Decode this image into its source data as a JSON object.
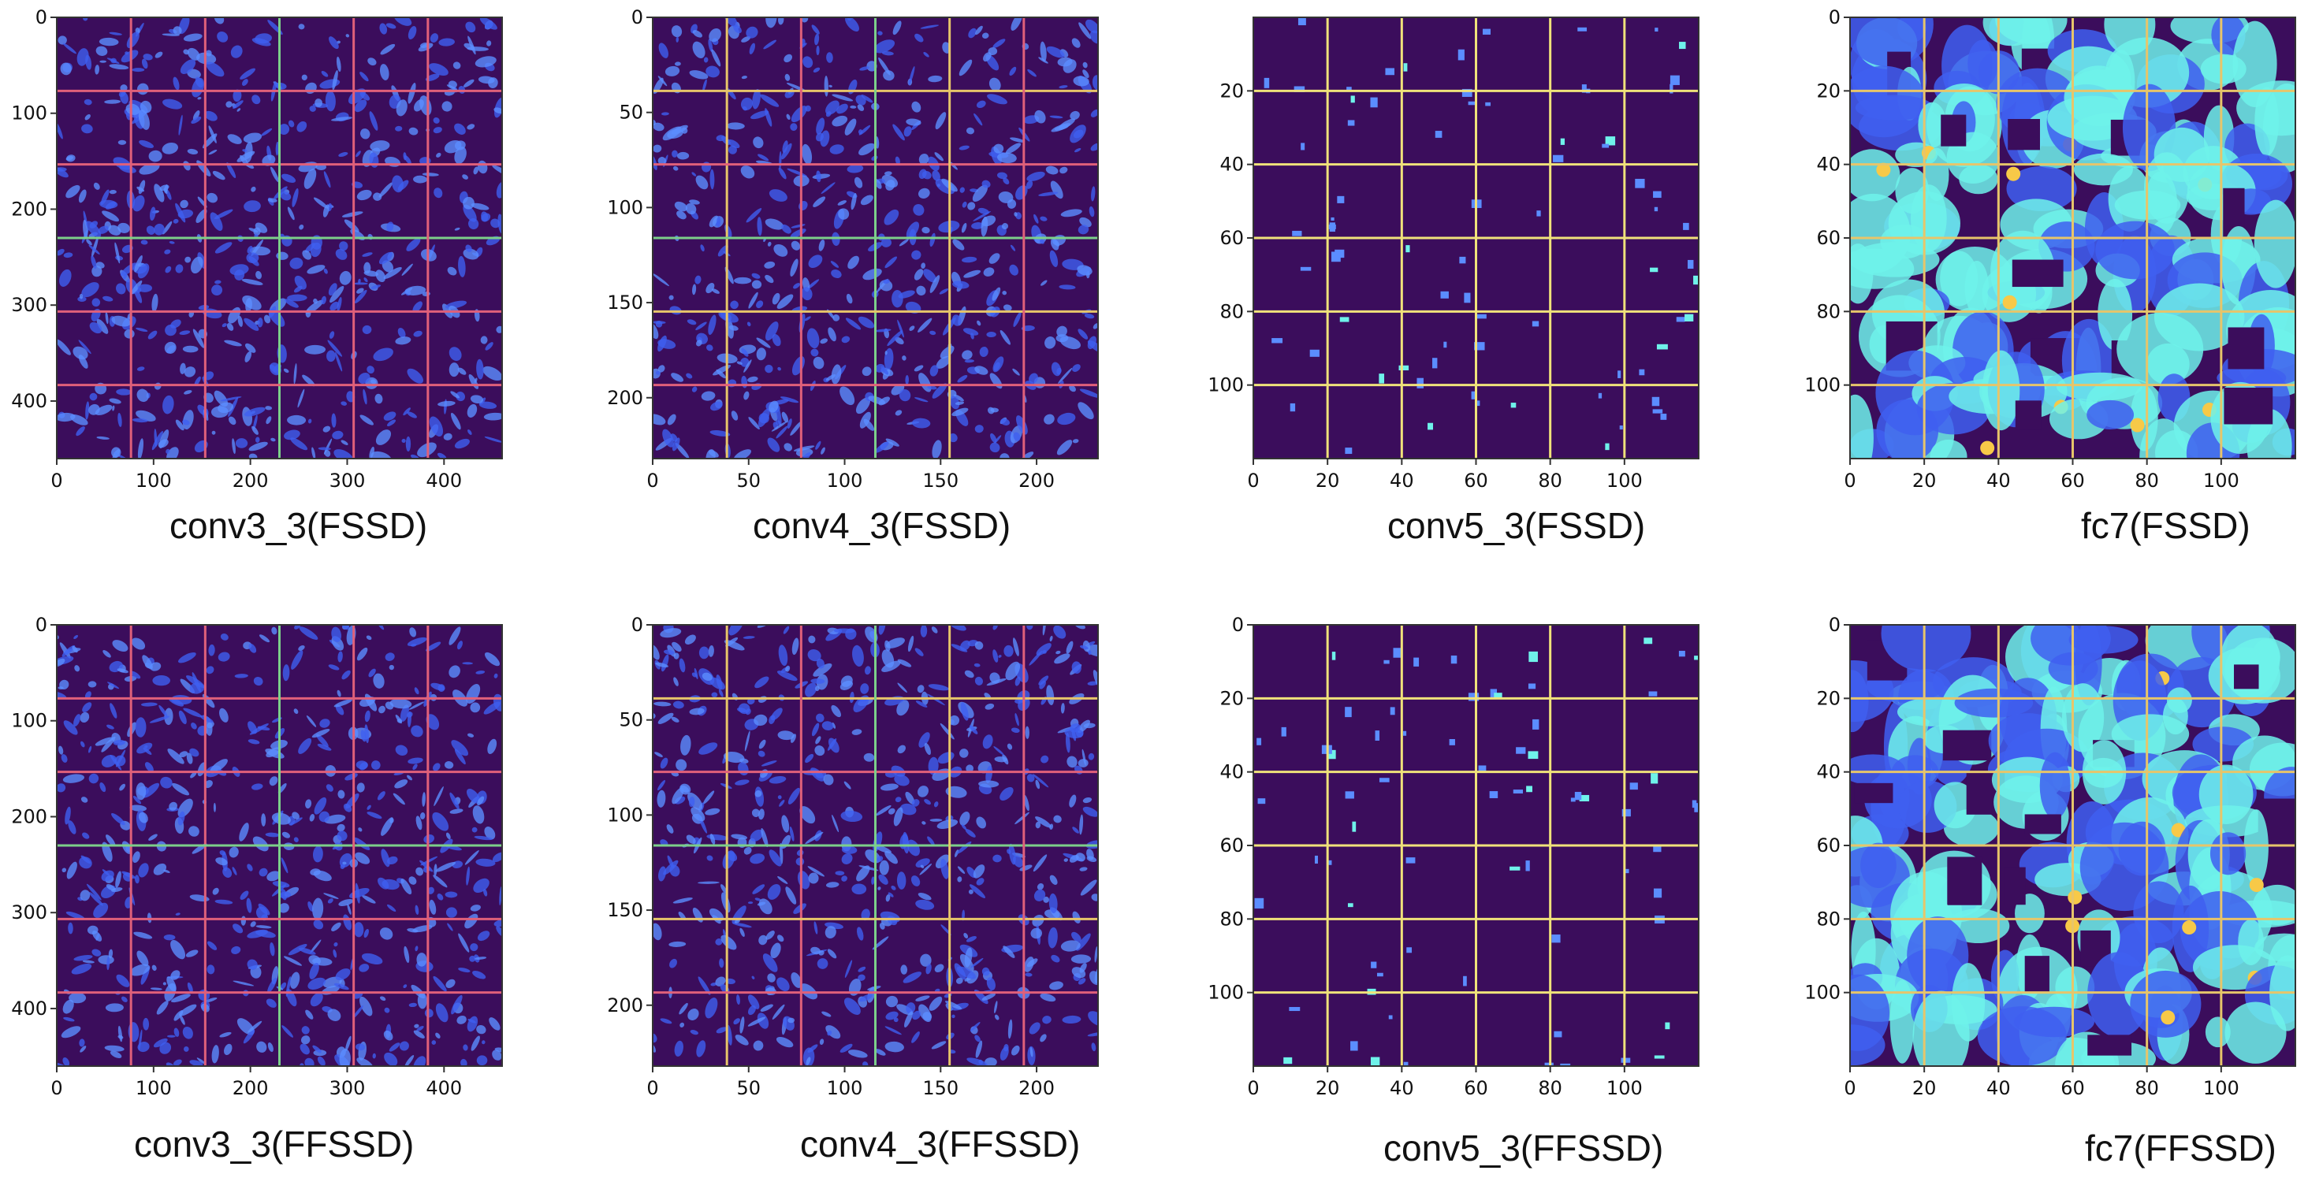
{
  "panels": [
    {
      "caption": "conv3_3(FSSD)",
      "xticks": [
        "0",
        "100",
        "200",
        "300",
        "400"
      ],
      "yticks": [
        "0",
        "100",
        "200",
        "300",
        "400"
      ],
      "extent": [
        0,
        460
      ],
      "tiles": 6,
      "level": 1,
      "gridColors": [
        "#e0607a",
        "#e0607a",
        "#7ccf8a",
        "#e0607a",
        "#e0607a"
      ]
    },
    {
      "caption": "conv4_3(FSSD)",
      "xticks": [
        "0",
        "50",
        "100",
        "150",
        "200"
      ],
      "yticks": [
        "0",
        "50",
        "100",
        "150",
        "200"
      ],
      "extent": [
        0,
        232
      ],
      "tiles": 6,
      "level": 1,
      "gridColors": [
        "#e7c56a",
        "#e0607a",
        "#7ccf8a",
        "#e7c56a",
        "#e0607a"
      ]
    },
    {
      "caption": "conv5_3(FSSD)",
      "xticks": [
        "0",
        "20",
        "40",
        "60",
        "80",
        "100"
      ],
      "yticks": [
        "20",
        "40",
        "60",
        "80",
        "100"
      ],
      "extent": [
        0,
        120
      ],
      "tiles": 6,
      "level": 0,
      "gridColors": [
        "#f0e27a",
        "#f0e27a",
        "#f0e27a",
        "#f0e27a",
        "#f0e27a"
      ]
    },
    {
      "caption": "fc7(FSSD)",
      "xticks": [
        "0",
        "20",
        "40",
        "60",
        "80",
        "100"
      ],
      "yticks": [
        "0",
        "20",
        "40",
        "60",
        "80",
        "100"
      ],
      "extent": [
        0,
        120
      ],
      "tiles": 6,
      "level": 2,
      "gridColors": [
        "#e7c56a",
        "#e7c56a",
        "#e7c56a",
        "#e7c56a",
        "#e7c56a"
      ]
    },
    {
      "caption": "conv3_3(FFSSD)",
      "xticks": [
        "0",
        "100",
        "200",
        "300",
        "400"
      ],
      "yticks": [
        "0",
        "100",
        "200",
        "300",
        "400"
      ],
      "extent": [
        0,
        460
      ],
      "tiles": 6,
      "level": 1,
      "gridColors": [
        "#e0607a",
        "#e0607a",
        "#7ccf8a",
        "#e0607a",
        "#e0607a"
      ]
    },
    {
      "caption": "conv4_3(FFSSD)",
      "xticks": [
        "0",
        "50",
        "100",
        "150",
        "200"
      ],
      "yticks": [
        "0",
        "50",
        "100",
        "150",
        "200"
      ],
      "extent": [
        0,
        232
      ],
      "tiles": 6,
      "level": 1,
      "gridColors": [
        "#e7c56a",
        "#e0607a",
        "#7ccf8a",
        "#e7c56a",
        "#e0607a"
      ]
    },
    {
      "caption": "conv5_3(FFSSD)",
      "xticks": [
        "0",
        "20",
        "40",
        "60",
        "80",
        "100"
      ],
      "yticks": [
        "0",
        "20",
        "40",
        "60",
        "80",
        "100"
      ],
      "extent": [
        0,
        120
      ],
      "tiles": 6,
      "level": 0,
      "gridColors": [
        "#f0e27a",
        "#f0e27a",
        "#f0e27a",
        "#f0e27a",
        "#f0e27a"
      ]
    },
    {
      "caption": "fc7(FFSSD)",
      "xticks": [
        "0",
        "20",
        "40",
        "60",
        "80",
        "100"
      ],
      "yticks": [
        "0",
        "20",
        "40",
        "60",
        "80",
        "100"
      ],
      "extent": [
        0,
        120
      ],
      "tiles": 6,
      "level": 2,
      "gridColors": [
        "#e7c56a",
        "#e7c56a",
        "#e7c56a",
        "#e7c56a",
        "#e7c56a"
      ]
    }
  ],
  "colors": {
    "background": "#3b0d5c",
    "activation": "#3f5ff0",
    "activation_light": "#5b8dff",
    "cyan": "#6ff2ea",
    "hot": "#f7c948",
    "hot_core": "#e84f7a"
  }
}
